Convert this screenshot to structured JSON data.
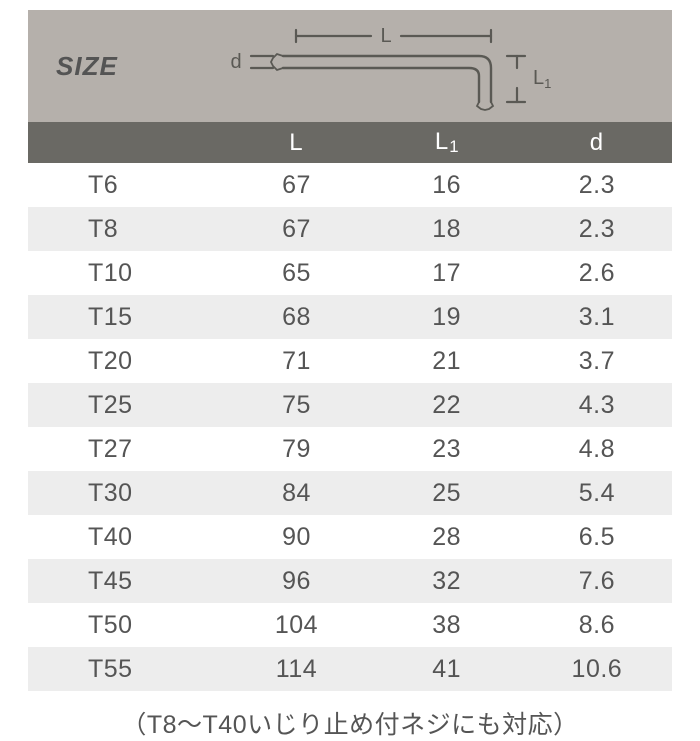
{
  "header": {
    "size_label": "SIZE",
    "columns": [
      "L",
      "L1",
      "d"
    ],
    "diagram_labels": {
      "L": "L",
      "L1": "L",
      "L1_sub": "1",
      "d": "d"
    }
  },
  "colors": {
    "header_bg": "#b5b0ab",
    "colhead_bg": "#6a6964",
    "colhead_fg": "#ffffff",
    "band_bg": "#ededed",
    "text": "#555555",
    "diagram_stroke": "#5a5954"
  },
  "rows": [
    {
      "name": "T6",
      "L": "67",
      "L1": "16",
      "d": "2.3"
    },
    {
      "name": "T8",
      "L": "67",
      "L1": "18",
      "d": "2.3"
    },
    {
      "name": "T10",
      "L": "65",
      "L1": "17",
      "d": "2.6"
    },
    {
      "name": "T15",
      "L": "68",
      "L1": "19",
      "d": "3.1"
    },
    {
      "name": "T20",
      "L": "71",
      "L1": "21",
      "d": "3.7"
    },
    {
      "name": "T25",
      "L": "75",
      "L1": "22",
      "d": "4.3"
    },
    {
      "name": "T27",
      "L": "79",
      "L1": "23",
      "d": "4.8"
    },
    {
      "name": "T30",
      "L": "84",
      "L1": "25",
      "d": "5.4"
    },
    {
      "name": "T40",
      "L": "90",
      "L1": "28",
      "d": "6.5"
    },
    {
      "name": "T45",
      "L": "96",
      "L1": "32",
      "d": "7.6"
    },
    {
      "name": "T50",
      "L": "104",
      "L1": "38",
      "d": "8.6"
    },
    {
      "name": "T55",
      "L": "114",
      "L1": "41",
      "d": "10.6"
    }
  ],
  "footnote": "（T8〜T40いじり止め付ネジにも対応）"
}
